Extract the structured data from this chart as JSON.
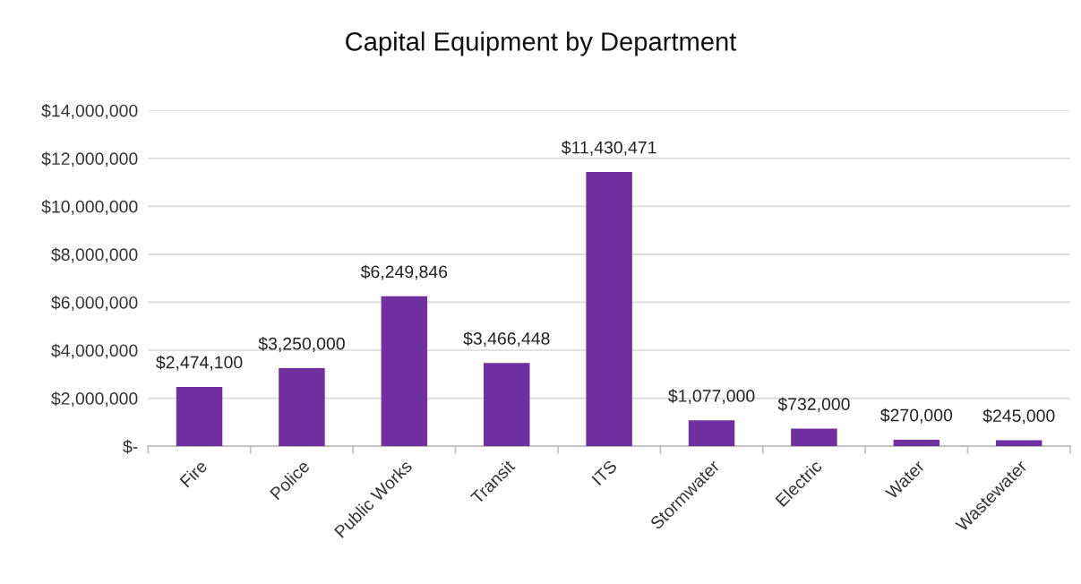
{
  "chart_data": {
    "type": "bar",
    "title": "Capital Equipment by Department",
    "categories": [
      "Fire",
      "Police",
      "Public Works",
      "Transit",
      "ITS",
      "Stormwater",
      "Electric",
      "Water",
      "Wastewater"
    ],
    "values": [
      2474100,
      3250000,
      6249846,
      3466448,
      11430471,
      1077000,
      732000,
      270000,
      245000
    ],
    "value_labels": [
      "$2,474,100",
      "$3,250,000",
      "$6,249,846",
      "$3,466,448",
      "$11,430,471",
      "$1,077,000",
      "$732,000",
      "$270,000",
      "$245,000"
    ],
    "color": "#7030a0",
    "ylim": [
      0,
      14000000
    ],
    "yticks": [
      {
        "value": 0,
        "label": "$-"
      },
      {
        "value": 2000000,
        "label": "$2,000,000"
      },
      {
        "value": 4000000,
        "label": "$4,000,000"
      },
      {
        "value": 6000000,
        "label": "$6,000,000"
      },
      {
        "value": 8000000,
        "label": "$8,000,000"
      },
      {
        "value": 10000000,
        "label": "$10,000,000"
      },
      {
        "value": 12000000,
        "label": "$12,000,000"
      },
      {
        "value": 14000000,
        "label": "$14,000,000"
      }
    ],
    "grid": "y",
    "legend": false
  }
}
